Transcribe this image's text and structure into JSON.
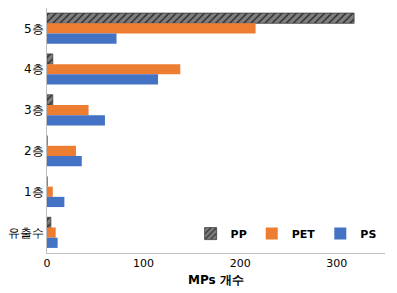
{
  "chart_data": {
    "type": "bar",
    "orientation": "horizontal",
    "categories": [
      "5층",
      "4층",
      "3층",
      "2층",
      "1층",
      "유출수"
    ],
    "series": [
      {
        "name": "PP",
        "color": "#7f7f7f",
        "marker": "hatched",
        "values": [
          318,
          6,
          6,
          0,
          0,
          4
        ]
      },
      {
        "name": "PET",
        "color": "#ed7d31",
        "values": [
          216,
          138,
          43,
          30,
          6,
          9
        ]
      },
      {
        "name": "PS",
        "color": "#4472c4",
        "values": [
          72,
          115,
          60,
          36,
          18,
          11
        ]
      }
    ],
    "x_label": "MPs 개수",
    "xlim": [
      0,
      350
    ],
    "xticks": [
      0,
      100,
      200,
      300
    ],
    "grid": false,
    "legend": "lower right"
  }
}
